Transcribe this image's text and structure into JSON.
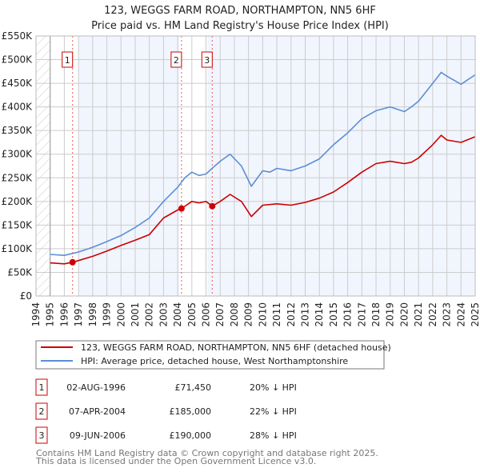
{
  "chart_data": {
    "type": "line",
    "title": "123, WEGGS FARM ROAD, NORTHAMPTON, NN5 6HF",
    "subtitle": "Price paid vs. HM Land Registry's House Price Index (HPI)",
    "xlim": [
      1994,
      2025
    ],
    "ylim": [
      0,
      550000
    ],
    "grid": true,
    "x_ticks": [
      "1994",
      "1995",
      "1996",
      "1997",
      "1998",
      "1999",
      "2000",
      "2001",
      "2002",
      "2003",
      "2004",
      "2005",
      "2006",
      "2007",
      "2008",
      "2009",
      "2010",
      "2011",
      "2012",
      "2013",
      "2014",
      "2015",
      "2016",
      "2017",
      "2018",
      "2019",
      "2020",
      "2021",
      "2022",
      "2023",
      "2024",
      "2025"
    ],
    "y_ticks": [
      {
        "value": 0,
        "label": "£0"
      },
      {
        "value": 50000,
        "label": "£50K"
      },
      {
        "value": 100000,
        "label": "£100K"
      },
      {
        "value": 150000,
        "label": "£150K"
      },
      {
        "value": 200000,
        "label": "£200K"
      },
      {
        "value": 250000,
        "label": "£250K"
      },
      {
        "value": 300000,
        "label": "£300K"
      },
      {
        "value": 350000,
        "label": "£350K"
      },
      {
        "value": 400000,
        "label": "£400K"
      },
      {
        "value": 450000,
        "label": "£450K"
      },
      {
        "value": 500000,
        "label": "£500K"
      },
      {
        "value": 550000,
        "label": "£550K"
      }
    ],
    "series": [
      {
        "name": "123, WEGGS FARM ROAD, NORTHAMPTON, NN5 6HF (detached house)",
        "color": "#cc0000",
        "x": [
          1995,
          1996,
          1996.58,
          1997,
          1998,
          1999,
          2000,
          2001,
          2002,
          2003,
          2004,
          2004.27,
          2005,
          2005.5,
          2006,
          2006.44,
          2007,
          2007.7,
          2008.5,
          2009.2,
          2010,
          2011,
          2012,
          2013,
          2014,
          2015,
          2016,
          2017,
          2018,
          2019,
          2020,
          2020.5,
          2021,
          2022,
          2022.6,
          2023,
          2024,
          2025
        ],
        "values": [
          70000,
          68000,
          71450,
          75000,
          84000,
          95000,
          107000,
          118000,
          130000,
          165000,
          182000,
          185000,
          200000,
          197000,
          200000,
          190000,
          200000,
          215000,
          200000,
          168000,
          192000,
          195000,
          192000,
          198000,
          207000,
          220000,
          240000,
          262000,
          280000,
          285000,
          280000,
          283000,
          292000,
          320000,
          340000,
          330000,
          325000,
          337000
        ]
      },
      {
        "name": "HPI: Average price, detached house, West Northamptonshire",
        "color": "#5b8fd4",
        "x": [
          1995,
          1996,
          1996.58,
          1997,
          1998,
          1999,
          2000,
          2001,
          2002,
          2003,
          2004,
          2004.5,
          2005,
          2005.5,
          2006,
          2006.5,
          2007,
          2007.7,
          2008.5,
          2009.2,
          2010,
          2010.5,
          2011,
          2012,
          2013,
          2014,
          2015,
          2016,
          2017,
          2018,
          2019,
          2020,
          2020.5,
          2021,
          2022,
          2022.6,
          2023,
          2024,
          2025
        ],
        "values": [
          88000,
          86000,
          90000,
          93000,
          103000,
          115000,
          128000,
          145000,
          165000,
          200000,
          230000,
          250000,
          262000,
          255000,
          258000,
          272000,
          285000,
          300000,
          275000,
          232000,
          265000,
          262000,
          270000,
          265000,
          275000,
          290000,
          320000,
          345000,
          375000,
          392000,
          400000,
          390000,
          400000,
          412000,
          450000,
          473000,
          465000,
          448000,
          468000
        ]
      }
    ],
    "sales": [
      {
        "label": "1",
        "x": 1996.58,
        "value": 71450,
        "date": "02-AUG-1996",
        "price": "£71,450",
        "hpi_diff": "20% ↓ HPI"
      },
      {
        "label": "2",
        "x": 2004.27,
        "value": 185000,
        "date": "07-APR-2004",
        "price": "£185,000",
        "hpi_diff": "22% ↓ HPI"
      },
      {
        "label": "3",
        "x": 2006.44,
        "value": 190000,
        "date": "09-JUN-2006",
        "price": "£190,000",
        "hpi_diff": "28% ↓ HPI"
      }
    ],
    "shaded_ranges": [
      [
        1997,
        2004.1
      ],
      [
        2006.1,
        2025
      ]
    ],
    "legend_placement": "below"
  },
  "footer": {
    "line1": "Contains HM Land Registry data © Crown copyright and database right 2025.",
    "line2": "This data is licensed under the Open Government Licence v3.0."
  }
}
